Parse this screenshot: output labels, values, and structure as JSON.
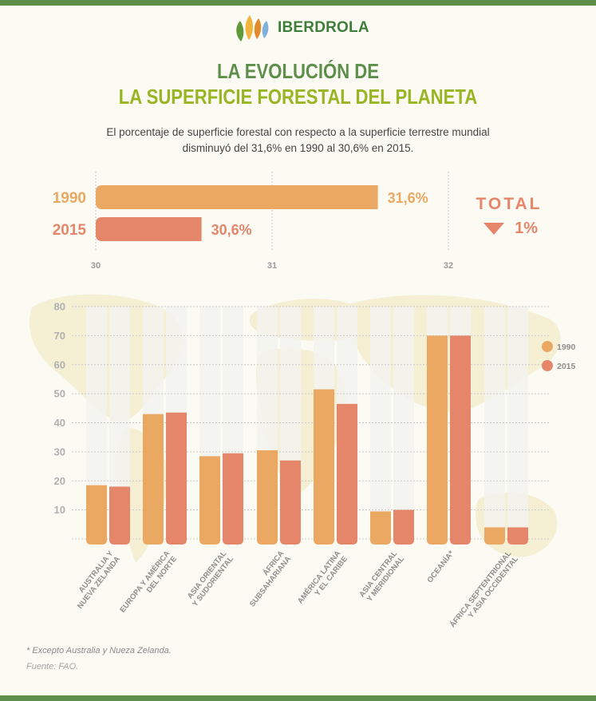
{
  "brand": {
    "name": "IBERDROLA"
  },
  "header": {
    "title_line1": "LA EVOLUCIÓN DE",
    "title_line2": "LA SUPERFICIE FORESTAL DEL PLANETA",
    "subtitle_line1": "El porcentaje de superficie forestal con respecto a la superficie terrestre mundial",
    "subtitle_line2": "disminuyó del 31,6% en 1990 al 30,6% en 2015."
  },
  "colors": {
    "c1990": "#eba862",
    "c2015": "#e5866b",
    "green": "#5e8f4a",
    "lime": "#98b523"
  },
  "total": {
    "label": "TOTAL",
    "value": "1%"
  },
  "footer": {
    "footnote": "* Excepto Australia y Nueza Zelanda.",
    "source": "Fuente: FAO."
  },
  "chart_data": [
    {
      "type": "bar",
      "orientation": "horizontal",
      "categories": [
        "1990",
        "2015"
      ],
      "values": [
        31.6,
        30.6
      ],
      "value_labels": [
        "31,6%",
        "30,6%"
      ],
      "xlim": [
        30,
        32
      ],
      "xticks": [
        "30",
        "31",
        "32"
      ],
      "grid": true
    },
    {
      "type": "bar",
      "categories": [
        [
          "AUSTRALIA Y",
          "NUEVA ZELANDA"
        ],
        [
          "EUROPA Y AMÉRICA",
          "DEL NORTE"
        ],
        [
          "ASIA ORIENTAL",
          "Y SUDORIENTAL"
        ],
        [
          "ÁFRICA",
          "SUBSAHARIANA"
        ],
        [
          "AMÉRICA LATINA",
          "Y EL CARIBE"
        ],
        [
          "ASIA CENTRAL",
          "Y MERIDIONAL"
        ],
        [
          "OCEANÍA*"
        ],
        [
          "ÁFRICA SEPTENTRIONAL",
          "Y ASIA OCCIDENTAL"
        ]
      ],
      "series": [
        {
          "name": "1990",
          "values": [
            18.5,
            43,
            28.5,
            30.5,
            51.5,
            9.5,
            70,
            4
          ]
        },
        {
          "name": "2015",
          "values": [
            18,
            43.5,
            29.5,
            27,
            46.5,
            10,
            70,
            4
          ]
        }
      ],
      "ylim": [
        0,
        80
      ],
      "yticks": [
        10,
        20,
        30,
        40,
        50,
        60,
        70,
        80
      ],
      "grid": true,
      "legend": "right"
    }
  ]
}
